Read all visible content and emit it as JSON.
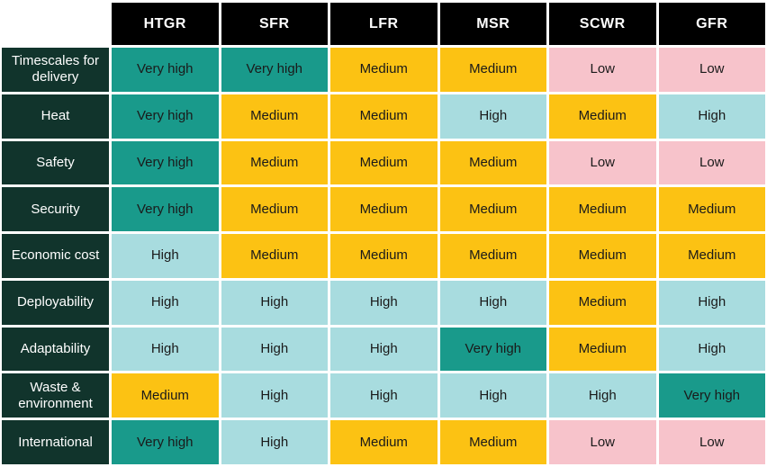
{
  "chart_data": {
    "type": "heatmap",
    "columns": [
      "HTGR",
      "SFR",
      "LFR",
      "MSR",
      "SCWR",
      "GFR"
    ],
    "rows": [
      {
        "label": "Timescales for delivery",
        "values": [
          "Very high",
          "Very high",
          "Medium",
          "Medium",
          "Low",
          "Low"
        ]
      },
      {
        "label": "Heat",
        "values": [
          "Very high",
          "Medium",
          "Medium",
          "High",
          "Medium",
          "High"
        ]
      },
      {
        "label": "Safety",
        "values": [
          "Very high",
          "Medium",
          "Medium",
          "Medium",
          "Low",
          "Low"
        ]
      },
      {
        "label": "Security",
        "values": [
          "Very high",
          "Medium",
          "Medium",
          "Medium",
          "Medium",
          "Medium"
        ]
      },
      {
        "label": "Economic cost",
        "values": [
          "High",
          "Medium",
          "Medium",
          "Medium",
          "Medium",
          "Medium"
        ]
      },
      {
        "label": "Deployability",
        "values": [
          "High",
          "High",
          "High",
          "High",
          "Medium",
          "High"
        ]
      },
      {
        "label": "Adaptability",
        "values": [
          "High",
          "High",
          "High",
          "Very high",
          "Medium",
          "High"
        ]
      },
      {
        "label": "Waste & environment",
        "values": [
          "Medium",
          "High",
          "High",
          "High",
          "High",
          "Very high"
        ]
      },
      {
        "label": "International",
        "values": [
          "Very high",
          "High",
          "Medium",
          "Medium",
          "Low",
          "Low"
        ]
      }
    ],
    "scale": [
      "Low",
      "Medium",
      "High",
      "Very high"
    ],
    "colors": {
      "Very high": "#199a8b",
      "High": "#a8dcdf",
      "Medium": "#fcc213",
      "Low": "#f7c3cb",
      "row_header_bg": "#11342c",
      "column_header_bg": "#000000",
      "cell_text": "#1a1a1a",
      "header_text": "#ffffff"
    }
  }
}
